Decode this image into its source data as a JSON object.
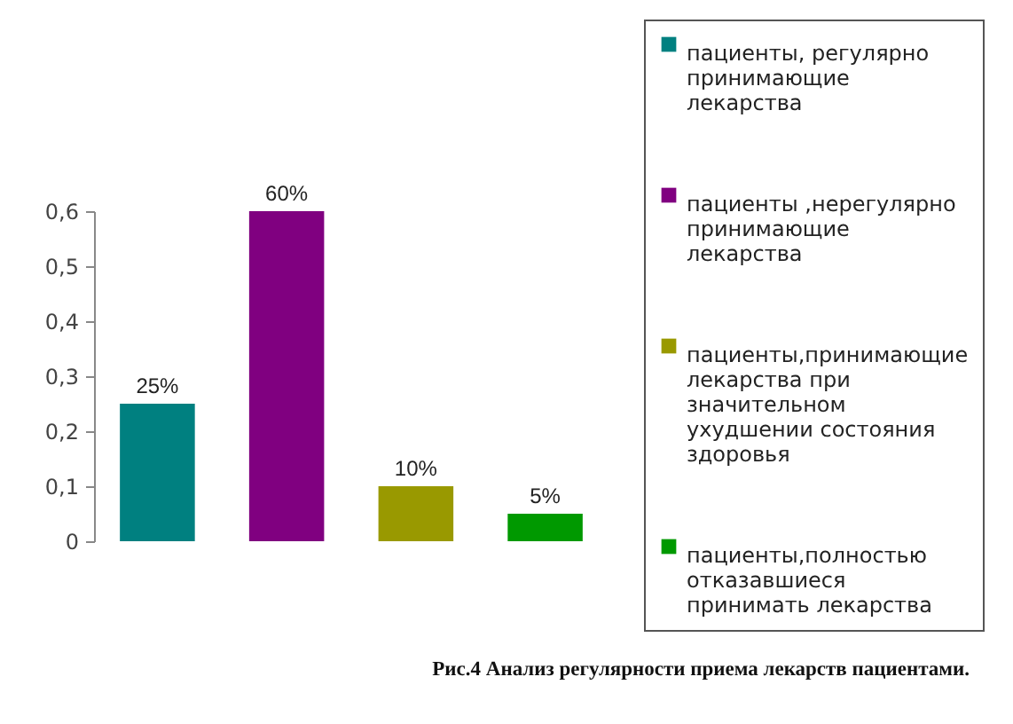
{
  "chart_data": {
    "type": "bar",
    "title": "Рис.4 Анализ регулярности приема лекарств пациентами.",
    "categories": [
      null,
      null,
      null,
      null
    ],
    "stacked": true,
    "series": [
      {
        "name": "пациенты, регулярно принимающие лекарства",
        "color": "#008080",
        "values": [
          0.25,
          null,
          null,
          null
        ],
        "value_labels": [
          "25%",
          null,
          null,
          null
        ]
      },
      {
        "name": "пациенты ,нерегулярно принимающие лекарства",
        "color": "#800080",
        "values": [
          null,
          0.6,
          null,
          null
        ],
        "value_labels": [
          null,
          "60%",
          null,
          null
        ]
      },
      {
        "name": "пациенты,принимающие лекарства при значительном ухудшении состояния здоровья",
        "color": "#999900",
        "values": [
          null,
          null,
          0.1,
          null
        ],
        "value_labels": [
          null,
          null,
          "10%",
          null
        ]
      },
      {
        "name": "пациенты,полностью отказавшиеся принимать лекарства",
        "color": "#009900",
        "values": [
          null,
          null,
          null,
          0.05
        ],
        "value_labels": [
          null,
          null,
          null,
          "5%"
        ]
      }
    ],
    "ylim": [
      0,
      0.6
    ],
    "yticks": [
      0,
      {
        "value": 0.1,
        "label": "0,1"
      },
      {
        "value": 0.2,
        "label": "0,2"
      },
      {
        "value": 0.3,
        "label": "0,3"
      },
      {
        "value": 0.4,
        "label": "0,4"
      },
      {
        "value": 0.5,
        "label": "0,5"
      },
      {
        "value": 0.6,
        "label": "0,6"
      }
    ],
    "tick_labels": "y",
    "legend": "right"
  }
}
